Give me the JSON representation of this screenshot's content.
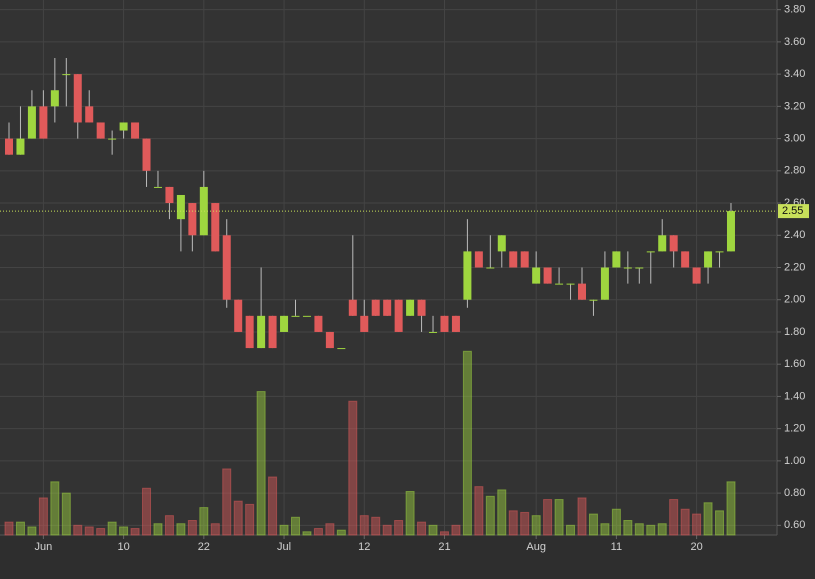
{
  "chart_data": {
    "type": "candlestick",
    "categories": [
      null,
      null,
      null,
      "Jun",
      null,
      null,
      null,
      null,
      null,
      null,
      "10",
      null,
      null,
      null,
      null,
      null,
      null,
      "22",
      null,
      null,
      null,
      null,
      null,
      null,
      "Jul",
      null,
      null,
      null,
      null,
      null,
      null,
      "12",
      null,
      null,
      null,
      null,
      null,
      null,
      "21",
      null,
      null,
      null,
      null,
      null,
      null,
      null,
      "Aug",
      null,
      null,
      null,
      null,
      null,
      null,
      "11",
      null,
      null,
      null,
      null,
      null,
      null,
      "20",
      null,
      null,
      null
    ],
    "open": [
      3.0,
      2.9,
      3.0,
      3.2,
      3.2,
      3.4,
      3.4,
      3.2,
      3.1,
      3.0,
      3.05,
      3.1,
      3.0,
      2.7,
      2.7,
      2.5,
      2.6,
      2.4,
      2.6,
      2.4,
      2.0,
      1.9,
      1.7,
      1.9,
      1.8,
      1.9,
      1.9,
      1.9,
      1.8,
      1.7,
      2.0,
      1.9,
      2.0,
      2.0,
      2.0,
      1.9,
      2.0,
      1.8,
      1.9,
      1.9,
      2.0,
      2.3,
      2.2,
      2.3,
      2.3,
      2.3,
      2.1,
      2.2,
      2.1,
      2.1,
      2.1,
      2.0,
      2.0,
      2.2,
      2.2,
      2.2,
      2.3,
      2.3,
      2.4,
      2.3,
      2.2,
      2.2,
      2.3,
      2.3
    ],
    "high": [
      3.1,
      3.2,
      3.3,
      3.3,
      3.5,
      3.5,
      3.4,
      3.3,
      3.1,
      3.05,
      3.1,
      3.1,
      3.0,
      2.8,
      2.7,
      2.65,
      2.6,
      2.8,
      2.6,
      2.5,
      2.0,
      1.9,
      2.2,
      1.9,
      1.9,
      2.0,
      1.9,
      1.9,
      1.8,
      1.7,
      2.4,
      2.0,
      2.0,
      2.0,
      2.0,
      2.0,
      2.0,
      1.9,
      1.9,
      1.9,
      2.5,
      2.3,
      2.4,
      2.4,
      2.3,
      2.3,
      2.3,
      2.2,
      2.2,
      2.1,
      2.2,
      2.0,
      2.3,
      2.3,
      2.3,
      2.2,
      2.3,
      2.5,
      2.4,
      2.3,
      2.2,
      2.3,
      2.3,
      2.6
    ],
    "low": [
      2.9,
      2.9,
      3.0,
      3.0,
      3.1,
      3.2,
      3.0,
      3.1,
      3.0,
      2.9,
      3.0,
      3.0,
      2.7,
      2.7,
      2.5,
      2.3,
      2.3,
      2.4,
      2.3,
      1.95,
      1.8,
      1.7,
      1.7,
      1.7,
      1.8,
      1.9,
      1.9,
      1.8,
      1.7,
      1.7,
      1.9,
      1.8,
      1.9,
      1.9,
      1.8,
      1.9,
      1.8,
      1.8,
      1.8,
      1.8,
      1.95,
      2.2,
      2.2,
      2.2,
      2.2,
      2.2,
      2.1,
      2.1,
      2.1,
      2.0,
      2.0,
      1.9,
      2.0,
      2.2,
      2.1,
      2.1,
      2.1,
      2.3,
      2.2,
      2.2,
      2.1,
      2.1,
      2.2,
      2.3
    ],
    "close": [
      2.9,
      3.0,
      3.2,
      3.0,
      3.3,
      3.4,
      3.1,
      3.1,
      3.0,
      3.0,
      3.1,
      3.0,
      2.8,
      2.7,
      2.6,
      2.65,
      2.4,
      2.7,
      2.3,
      2.0,
      1.8,
      1.7,
      1.9,
      1.7,
      1.9,
      1.9,
      1.9,
      1.8,
      1.7,
      1.7,
      1.9,
      1.8,
      1.9,
      1.9,
      1.8,
      2.0,
      1.9,
      1.8,
      1.8,
      1.8,
      2.3,
      2.2,
      2.2,
      2.4,
      2.2,
      2.2,
      2.2,
      2.1,
      2.1,
      2.1,
      2.0,
      2.0,
      2.2,
      2.3,
      2.2,
      2.2,
      2.3,
      2.4,
      2.3,
      2.2,
      2.1,
      2.3,
      2.3,
      2.55
    ],
    "volume": [
      0.62,
      0.62,
      0.59,
      0.77,
      0.87,
      0.8,
      0.6,
      0.59,
      0.58,
      0.62,
      0.59,
      0.58,
      0.83,
      0.61,
      0.66,
      0.61,
      0.63,
      0.71,
      0.61,
      0.95,
      0.75,
      0.73,
      1.43,
      0.9,
      0.6,
      0.65,
      0.56,
      0.58,
      0.61,
      0.57,
      1.37,
      0.66,
      0.65,
      0.6,
      0.63,
      0.81,
      0.62,
      0.6,
      0.56,
      0.6,
      1.68,
      0.84,
      0.78,
      0.82,
      0.69,
      0.68,
      0.66,
      0.76,
      0.76,
      0.6,
      0.77,
      0.67,
      0.61,
      0.7,
      0.63,
      0.61,
      0.6,
      0.61,
      0.76,
      0.7,
      0.67,
      0.74,
      0.69,
      0.87
    ],
    "up_color": "#9fd63f",
    "down_color": "#e05a5a",
    "last_price": 2.55,
    "last_price_color": "#c8e05a",
    "ylim": [
      0.54,
      3.86
    ],
    "yticks": [
      {
        "value": 0.6,
        "label": "0.60"
      },
      {
        "value": 0.8,
        "label": "0.80"
      },
      {
        "value": 1,
        "label": "1.00"
      },
      {
        "value": 1.2,
        "label": "1.20"
      },
      {
        "value": 1.4,
        "label": "1.40"
      },
      {
        "value": 1.6,
        "label": "1.60"
      },
      {
        "value": 1.8,
        "label": "1.80"
      },
      {
        "value": 2,
        "label": "2.00"
      },
      {
        "value": 2.2,
        "label": "2.20"
      },
      {
        "value": 2.4,
        "label": "2.40"
      },
      {
        "value": 2.6,
        "label": "2.60"
      },
      {
        "value": 2.8,
        "label": "2.80"
      },
      {
        "value": 3,
        "label": "3.00"
      },
      {
        "value": 3.2,
        "label": "3.20"
      },
      {
        "value": 3.4,
        "label": "3.40"
      },
      {
        "value": 3.6,
        "label": "3.60"
      },
      {
        "value": 3.8,
        "label": "3.80"
      }
    ],
    "grid": true
  }
}
